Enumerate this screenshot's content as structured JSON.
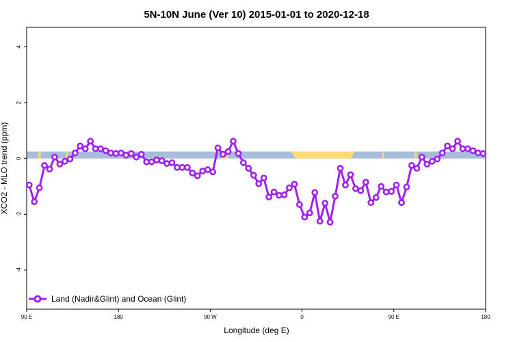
{
  "chart_data": {
    "type": "line",
    "title": "5N-10N June (Ver 10)   2015-01-01 to 2020-12-18",
    "xlabel": "Longitude (deg E)",
    "ylabel": "XCO2 - MLO trend (ppm)",
    "xlim": [
      0,
      100
    ],
    "ylim": [
      -5.4,
      4.7
    ],
    "x_ticks": [
      {
        "pos": 0,
        "label": "90 E"
      },
      {
        "pos": 20,
        "label": "180"
      },
      {
        "pos": 40,
        "label": "90 W"
      },
      {
        "pos": 60,
        "label": "0"
      },
      {
        "pos": 80,
        "label": "90 E"
      },
      {
        "pos": 100,
        "label": "180"
      }
    ],
    "y_ticks": [
      -4,
      -2,
      0,
      2,
      4
    ],
    "grid": false,
    "legend_position": "bottom-left",
    "colors": {
      "series": "#a020f0",
      "ocean": "#a7bddb",
      "land": "#fdd979"
    },
    "series": [
      {
        "name": "Land (Nadir&Glint) and Ocean (Glint)",
        "values": [
          -0.95,
          -1.55,
          -1.05,
          -0.25,
          -0.38,
          0.05,
          -0.2,
          -0.1,
          -0.02,
          0.2,
          0.45,
          0.35,
          0.62,
          0.35,
          0.35,
          0.28,
          0.2,
          0.18,
          0.2,
          0.12,
          0.18,
          0.05,
          0.15,
          -0.12,
          -0.12,
          -0.05,
          -0.08,
          -0.18,
          -0.15,
          -0.32,
          -0.32,
          -0.32,
          -0.52,
          -0.62,
          -0.45,
          -0.4,
          -0.48,
          0.38,
          0.15,
          0.25,
          0.62,
          0.18,
          -0.15,
          -0.35,
          -0.6,
          -0.9,
          -0.7,
          -1.38,
          -1.2,
          -1.32,
          -1.3,
          -1.05,
          -0.92,
          -1.65,
          -2.1,
          -1.95,
          -1.22,
          -2.25,
          -1.6,
          -2.28,
          -1.35,
          -0.35,
          -0.95,
          -0.58,
          -1.08,
          -1.15,
          -0.85,
          -1.58,
          -1.4,
          -1.0,
          -1.2,
          -1.18,
          -0.95,
          -1.58,
          -1.02,
          -0.25,
          -0.35,
          0.05,
          -0.2,
          -0.1,
          -0.02,
          0.2,
          0.45,
          0.35,
          0.62,
          0.35,
          0.35,
          0.28,
          0.2,
          0.18
        ]
      }
    ]
  }
}
